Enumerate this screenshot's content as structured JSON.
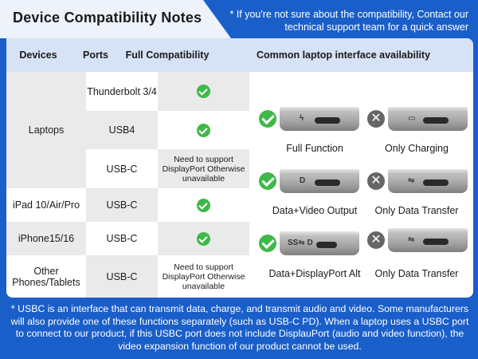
{
  "title": "Device Compatibility Notes",
  "top_note": "* If you're not sure about the compatibility, Contact our technical support team for a quick answer",
  "headers": {
    "devices": "Devices",
    "ports": "Ports",
    "full": "Full Compatibility",
    "common": "Common laptop interface availability"
  },
  "rows": {
    "laptops": "Laptops",
    "tb": "Thunderbolt 3/4",
    "usb4": "USB4",
    "usbc": "USB-C",
    "usbc_note": "Need to support DisplayPort Otherwise unavailable",
    "ipad": "iPad 10/Air/Pro",
    "ipad_port": "USB-C",
    "iphone": "iPhone15/16",
    "iphone_port": "USB-C",
    "other": "Other Phones/Tablets",
    "other_port": "USB-C",
    "other_note": "Need to support DisplayPort Otherwise unavailable"
  },
  "interfaces": {
    "full_function": "Full Function",
    "only_charging": "Only Charging",
    "data_video": "Data+Video Output",
    "only_data_1": "Only Data Transfer",
    "data_dp": "Data+DisplayPort Alt",
    "only_data_2": "Only Data Transfer",
    "glyph_bolt": "ϟ",
    "glyph_dp": "D",
    "glyph_charge": "▭",
    "glyph_usb": "⇋",
    "glyph_ss": "SS⇋ D"
  },
  "bottom_note": "* USBC is an interface that can transmit data, charge, and transmit audio and video. Some manufacturers will also provide one of these functions separately (such as USB-C PD). When a laptop uses a USBC port to connect to our product, if this USBC port does not include DisplauPort (audio and video function), the video expansion function of our product cannot be used."
}
